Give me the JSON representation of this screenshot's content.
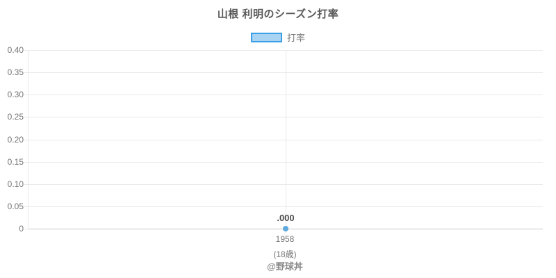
{
  "title": "山根 利明のシーズン打率",
  "legend": {
    "label": "打率"
  },
  "watermark": "@野球丼",
  "chart_data": {
    "type": "line",
    "title": "山根 利明のシーズン打率",
    "categories": [
      "1958"
    ],
    "category_sublabels": [
      "(18歳)"
    ],
    "series": [
      {
        "name": "打率",
        "values": [
          0.0
        ]
      }
    ],
    "point_labels": [
      ".000"
    ],
    "ylim": [
      0,
      0.4
    ],
    "y_ticks": [
      0,
      0.05,
      0.1,
      0.15,
      0.2,
      0.25,
      0.3,
      0.35,
      0.4
    ],
    "y_tick_labels": [
      "0",
      "0.05",
      "0.10",
      "0.15",
      "0.20",
      "0.25",
      "0.30",
      "0.35",
      "0.40"
    ],
    "grid": true,
    "legend_position": "top",
    "colors": {
      "marker": "#5ea9dd",
      "legend_fill": "#a9d3f3",
      "legend_border": "#3b9fe8",
      "grid": "#e9e9e9",
      "axis_line": "#c8c8c8",
      "tick_text": "#757575",
      "title_text": "#595959",
      "point_label_text": "#4d4d4d",
      "watermark_text": "#8a8a8a"
    }
  }
}
